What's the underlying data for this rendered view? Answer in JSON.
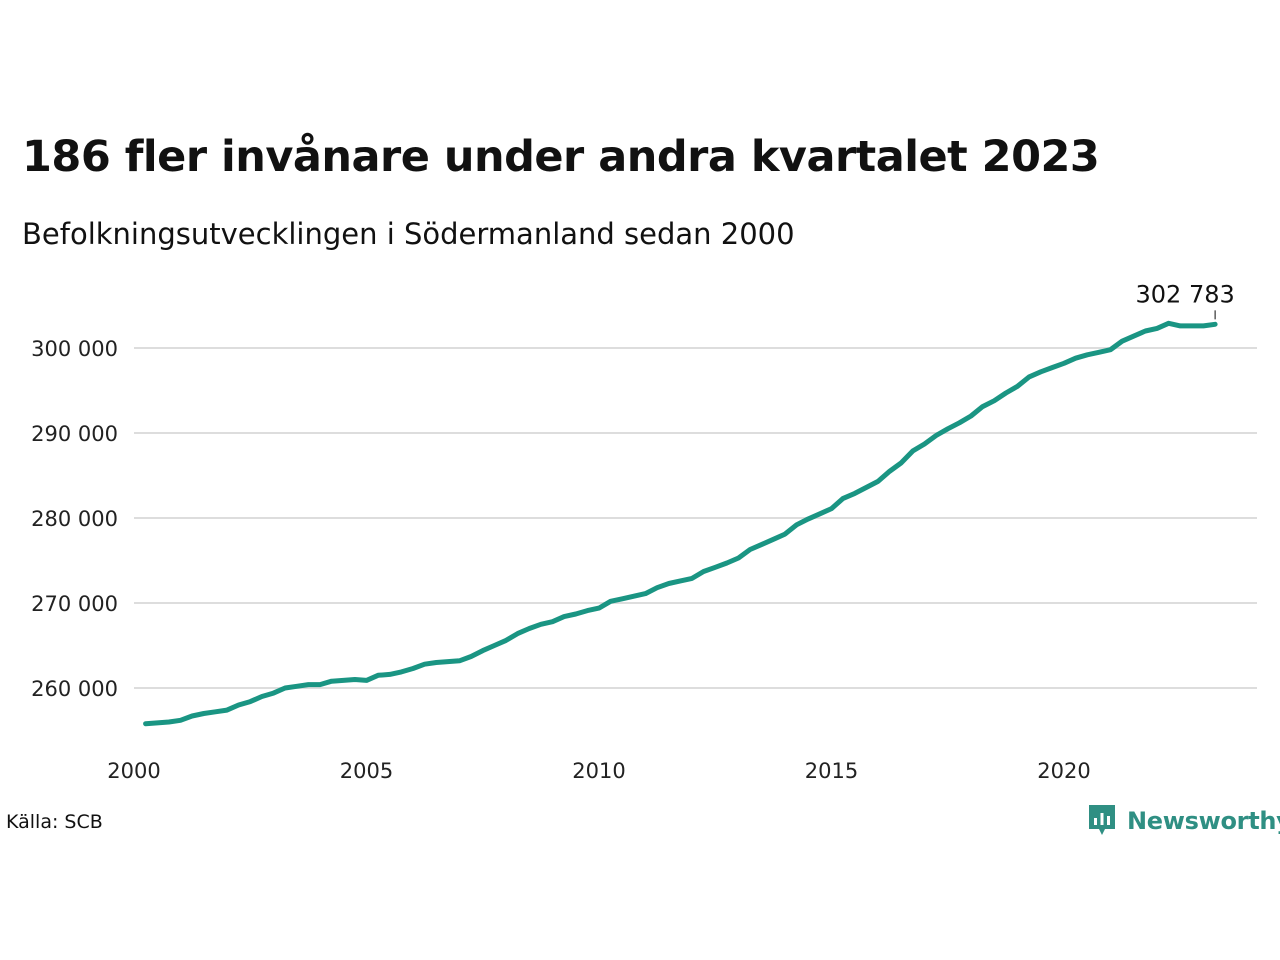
{
  "title": "186 fler invånare under andra kvartalet 2023",
  "subtitle": "Befolkningsutvecklingen i Södermanland sedan 2000",
  "source": "Källa: SCB",
  "brand": "Newsworthy",
  "colors": {
    "line": "#1a9583",
    "grid": "#dddddd",
    "brand": "#2f8f83"
  },
  "chart_data": {
    "type": "line",
    "title": "186 fler invånare under andra kvartalet 2023",
    "subtitle": "Befolkningsutvecklingen i Södermanland sedan 2000",
    "xlabel": "",
    "ylabel": "",
    "xlim": [
      2000,
      2024.3
    ],
    "ylim": [
      254000,
      305000
    ],
    "x_ticks": [
      2000,
      2005,
      2010,
      2015,
      2020
    ],
    "x_tick_labels": [
      "2000",
      "2005",
      "2010",
      "2015",
      "2020"
    ],
    "y_ticks": [
      260000,
      270000,
      280000,
      290000,
      300000
    ],
    "y_tick_labels": [
      "260 000",
      "270 000",
      "280 000",
      "290 000",
      "300 000"
    ],
    "grid": true,
    "end_label": "302 783",
    "series": [
      {
        "x": [
          2000.25,
          2000.5,
          2000.75,
          2001.0,
          2001.25,
          2001.5,
          2001.75,
          2002.0,
          2002.25,
          2002.5,
          2002.75,
          2003.0,
          2003.25,
          2003.5,
          2003.75,
          2004.0,
          2004.25,
          2004.5,
          2004.75,
          2005.0,
          2005.25,
          2005.5,
          2005.75,
          2006.0,
          2006.25,
          2006.5,
          2006.75,
          2007.0,
          2007.25,
          2007.5,
          2007.75,
          2008.0,
          2008.25,
          2008.5,
          2008.75,
          2009.0,
          2009.25,
          2009.5,
          2009.75,
          2010.0,
          2010.25,
          2010.5,
          2010.75,
          2011.0,
          2011.25,
          2011.5,
          2011.75,
          2012.0,
          2012.25,
          2012.5,
          2012.75,
          2013.0,
          2013.25,
          2013.5,
          2013.75,
          2014.0,
          2014.25,
          2014.5,
          2014.75,
          2015.0,
          2015.25,
          2015.5,
          2015.75,
          2016.0,
          2016.25,
          2016.5,
          2016.75,
          2017.0,
          2017.25,
          2017.5,
          2017.75,
          2018.0,
          2018.25,
          2018.5,
          2018.75,
          2019.0,
          2019.25,
          2019.5,
          2019.75,
          2020.0,
          2020.25,
          2020.5,
          2020.75,
          2021.0,
          2021.25,
          2021.5,
          2021.75,
          2022.0,
          2022.25,
          2022.5,
          2022.75,
          2023.0,
          2023.25
        ],
        "y": [
          255800,
          255900,
          256000,
          256200,
          256700,
          257000,
          257200,
          257400,
          258000,
          258400,
          259000,
          259400,
          260000,
          260200,
          260400,
          260400,
          260800,
          260900,
          261000,
          260900,
          261500,
          261600,
          261900,
          262300,
          262800,
          263000,
          263100,
          263200,
          263700,
          264400,
          265000,
          265600,
          266400,
          267000,
          267500,
          267800,
          268400,
          268700,
          269100,
          269400,
          270200,
          270500,
          270800,
          271100,
          271800,
          272300,
          272600,
          272900,
          273700,
          274200,
          274700,
          275300,
          276300,
          276900,
          277500,
          278100,
          279200,
          279900,
          280500,
          281100,
          282300,
          282900,
          283600,
          284300,
          285500,
          286500,
          287900,
          288700,
          289700,
          290500,
          291200,
          292000,
          293100,
          293800,
          294700,
          295500,
          296600,
          297200,
          297700,
          298200,
          298800,
          299200,
          299500,
          299800,
          300800,
          301400,
          302000,
          302300,
          302900,
          302600,
          302600,
          302600,
          302783
        ]
      }
    ]
  }
}
